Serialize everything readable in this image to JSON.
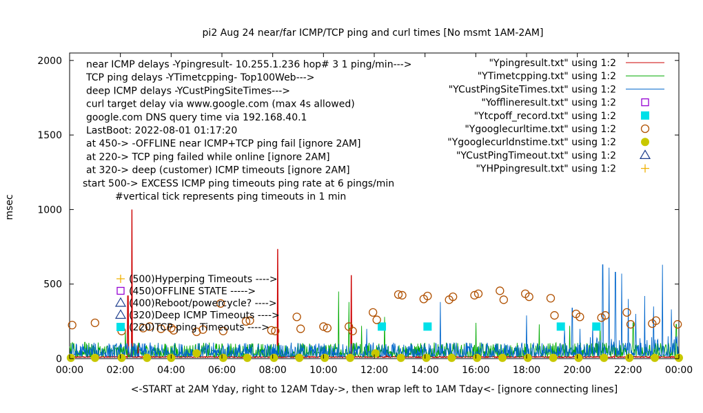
{
  "chart_data": {
    "type": "line",
    "title": "pi2 Aug 24  near/far ICMP/TCP ping and curl times [No msmt 1AM-2AM]",
    "xlabel": "<-START at 2AM Yday, right to 12AM Tday->, then wrap left to 1AM Tday<- [ignore connecting lines]",
    "ylabel": "msec",
    "xlim": [
      0,
      24
    ],
    "ylim": [
      0,
      2050
    ],
    "x_ticks": [
      "00:00",
      "02:00",
      "04:00",
      "06:00",
      "08:00",
      "10:00",
      "12:00",
      "14:00",
      "16:00",
      "18:00",
      "20:00",
      "22:00",
      "00:00"
    ],
    "y_ticks": [
      "0",
      "500",
      "1000",
      "1500",
      "2000"
    ],
    "y_tick_values": [
      0,
      500,
      1000,
      1500,
      2000
    ],
    "grid": false,
    "legend_position": "top-right",
    "colors": {
      "ping": "#cc0000",
      "tcp": "#00aa00",
      "cust": "#0066cc",
      "offline": "#9400d3",
      "tcpoff": "#00e0e8",
      "curl": "#b05000",
      "dns": "#c8c800",
      "custtimeout": "#1c3c8c",
      "hp": "#f0b000"
    },
    "legend": [
      {
        "label": "\"Ypingresult.txt\" using 1:2",
        "style": "line",
        "color": "#cc0000"
      },
      {
        "label": "\"YTimetcpping.txt\" using 1:2",
        "style": "line",
        "color": "#00aa00"
      },
      {
        "label": "\"YCustPingSiteTimes.txt\" using 1:2",
        "style": "line",
        "color": "#0066cc"
      },
      {
        "label": "\"Yofflineresult.txt\" using 1:2",
        "style": "open-square",
        "color": "#9400d3"
      },
      {
        "label": "\"Ytcpoff_record.txt\" using 1:2",
        "style": "filled-square",
        "color": "#00e0e8"
      },
      {
        "label": "\"Ygooglecurltime.txt\" using 1:2",
        "style": "open-circle",
        "color": "#b05000"
      },
      {
        "label": "\"Ygooglecurldnstime.txt\" using 1:2",
        "style": "filled-circle",
        "color": "#c8c800"
      },
      {
        "label": "\"YCustPingTimeout.txt\" using 1:2",
        "style": "open-triangle",
        "color": "#1c3c8c"
      },
      {
        "label": "\"YHPpingresult.txt\" using 1:2",
        "style": "plus",
        "color": "#f0b000"
      }
    ],
    "notes": [
      "near ICMP delays -Ypingresult- 10.255.1.236 hop# 3 1 ping/min--->",
      "TCP ping delays -YTimetcpping- Top100Web--->",
      "deep ICMP delays -YCustPingSiteTimes--->",
      "curl target delay via www.google.com (max 4s allowed)",
      "google.com DNS query time via 192.168.40.1",
      "LastBoot: 2022-08-01 01:17:20",
      "at 450-> -OFFLINE near ICMP+TCP ping fail [ignore 2AM]",
      "at 220-> TCP ping failed while online [ignore 2AM]",
      "at 320-> deep (customer) ICMP timeouts [ignore 2AM]",
      "start 500-> EXCESS ICMP ping timeouts ping rate at 6 pings/min",
      "#vertical tick represents ping timeouts in 1 min"
    ],
    "inline_legend": [
      {
        "label": "(500)Hyperping Timeouts ---->",
        "marker": "plus",
        "color": "#f0b000"
      },
      {
        "label": "(450)OFFLINE STATE ----->",
        "marker": "open-square",
        "color": "#9400d3"
      },
      {
        "label": "(400)Reboot/powercycle? ---->",
        "marker": "open-triangle",
        "color": "#1c3c8c"
      },
      {
        "label": "(320)Deep ICMP Timeouts ---->",
        "marker": "open-triangle",
        "color": "#1c3c8c"
      },
      {
        "label": "(220)TCP ping Timeouts ---->",
        "marker": "filled-square",
        "color": "#00e0e8"
      }
    ],
    "series": [
      {
        "name": "\"Ypingresult.txt\" using 1:2",
        "baseline": 8,
        "spikes": [
          [
            2.45,
            1000
          ],
          [
            2.3,
            420
          ],
          [
            8.2,
            735
          ],
          [
            11.1,
            560
          ],
          [
            2.7,
            90
          ],
          [
            12.5,
            60
          ],
          [
            21.5,
            50
          ]
        ]
      },
      {
        "name": "\"YTimetcpping.txt\" using 1:2",
        "baseline": 60,
        "spikes": [
          [
            0.6,
            110
          ],
          [
            2.2,
            190
          ],
          [
            10.6,
            450
          ],
          [
            11.0,
            380
          ],
          [
            11.5,
            220
          ],
          [
            12.4,
            280
          ],
          [
            16.0,
            240
          ],
          [
            18.5,
            230
          ],
          [
            19.7,
            220
          ],
          [
            20.9,
            240
          ],
          [
            22.2,
            240
          ],
          [
            23.9,
            230
          ]
        ]
      },
      {
        "name": "\"YCustPingSiteTimes.txt\" using 1:2",
        "baseline": 60,
        "spikes": [
          [
            11.7,
            200
          ],
          [
            14.6,
            380
          ],
          [
            18.0,
            290
          ],
          [
            19.5,
            200
          ],
          [
            19.8,
            340
          ],
          [
            20.1,
            200
          ],
          [
            20.6,
            230
          ],
          [
            21.0,
            630
          ],
          [
            21.25,
            610
          ],
          [
            21.5,
            580
          ],
          [
            21.75,
            570
          ],
          [
            22.0,
            400
          ],
          [
            22.3,
            300
          ],
          [
            22.65,
            420
          ],
          [
            23.0,
            350
          ],
          [
            23.35,
            630
          ],
          [
            23.7,
            330
          ]
        ]
      },
      {
        "name": "\"Yofflineresult.txt\" using 1:2",
        "points": []
      },
      {
        "name": "\"Ytcpoff_record.txt\" using 1:2",
        "points": [
          [
            12.3,
            215
          ],
          [
            14.1,
            215
          ],
          [
            19.35,
            215
          ],
          [
            20.75,
            215
          ]
        ]
      },
      {
        "name": "\"Ygooglecurltime.txt\" using 1:2",
        "points": [
          [
            0.1,
            225
          ],
          [
            1.0,
            240
          ],
          [
            2.05,
            185
          ],
          [
            2.9,
            205
          ],
          [
            3.15,
            215
          ],
          [
            3.6,
            200
          ],
          [
            4.0,
            205
          ],
          [
            4.1,
            190
          ],
          [
            5.0,
            180
          ],
          [
            5.25,
            195
          ],
          [
            5.95,
            370
          ],
          [
            6.05,
            185
          ],
          [
            6.95,
            250
          ],
          [
            7.1,
            255
          ],
          [
            7.95,
            190
          ],
          [
            8.1,
            185
          ],
          [
            8.95,
            280
          ],
          [
            9.1,
            200
          ],
          [
            10.0,
            215
          ],
          [
            10.15,
            205
          ],
          [
            11.0,
            215
          ],
          [
            11.15,
            185
          ],
          [
            11.95,
            310
          ],
          [
            12.1,
            260
          ],
          [
            12.95,
            430
          ],
          [
            13.1,
            425
          ],
          [
            13.95,
            400
          ],
          [
            14.1,
            420
          ],
          [
            14.95,
            395
          ],
          [
            15.1,
            415
          ],
          [
            15.95,
            425
          ],
          [
            16.1,
            435
          ],
          [
            16.95,
            455
          ],
          [
            17.1,
            395
          ],
          [
            17.95,
            435
          ],
          [
            18.1,
            415
          ],
          [
            18.95,
            405
          ],
          [
            19.1,
            290
          ],
          [
            19.95,
            300
          ],
          [
            20.1,
            280
          ],
          [
            20.95,
            275
          ],
          [
            21.1,
            290
          ],
          [
            21.95,
            310
          ],
          [
            22.1,
            230
          ],
          [
            22.95,
            235
          ],
          [
            23.1,
            255
          ],
          [
            23.95,
            230
          ]
        ]
      },
      {
        "name": "\"Ygooglecurldnstime.txt\" using 1:2",
        "points": [
          [
            0.05,
            5
          ],
          [
            1.0,
            5
          ],
          [
            2.05,
            5
          ],
          [
            3.05,
            5
          ],
          [
            4.0,
            5
          ],
          [
            5.0,
            35
          ],
          [
            6.05,
            5
          ],
          [
            7.0,
            5
          ],
          [
            8.05,
            5
          ],
          [
            9.05,
            5
          ],
          [
            10.05,
            5
          ],
          [
            11.05,
            5
          ],
          [
            12.05,
            35
          ],
          [
            13.05,
            5
          ],
          [
            14.05,
            5
          ],
          [
            15.05,
            5
          ],
          [
            16.05,
            5
          ],
          [
            17.05,
            5
          ],
          [
            18.05,
            5
          ],
          [
            19.05,
            5
          ],
          [
            20.05,
            5
          ],
          [
            21.05,
            5
          ],
          [
            22.05,
            5
          ],
          [
            23.05,
            5
          ],
          [
            24.0,
            5
          ]
        ]
      },
      {
        "name": "\"YCustPingTimeout.txt\" using 1:2",
        "points": []
      },
      {
        "name": "\"YHPpingresult.txt\" using 1:2",
        "points": []
      }
    ]
  }
}
